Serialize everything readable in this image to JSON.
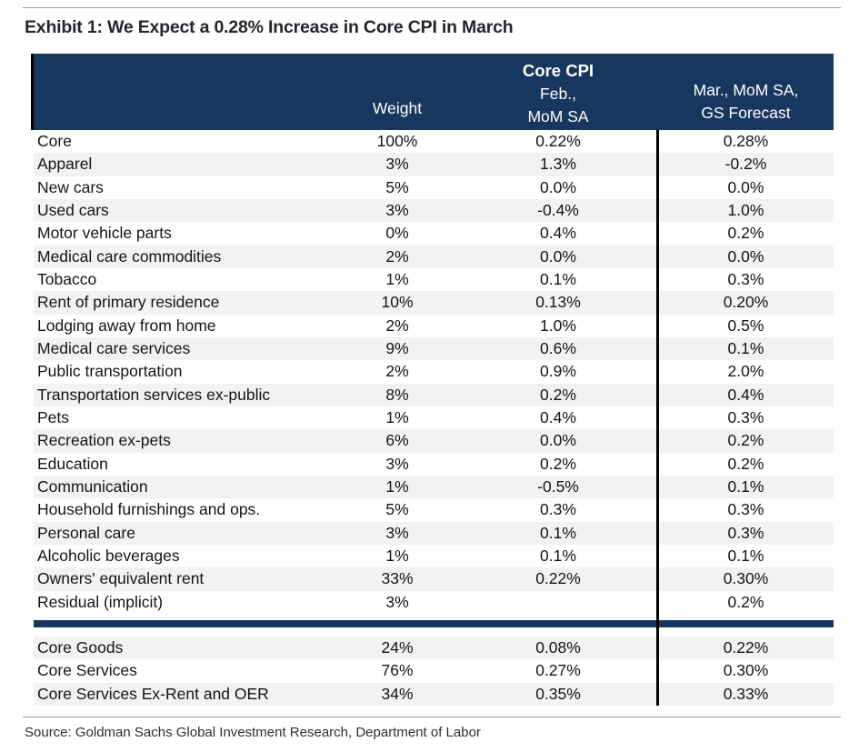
{
  "title": "Exhibit 1: We Expect a 0.28% Increase in Core CPI in March",
  "source": "Source: Goldman Sachs Global Investment Research, Department of Labor",
  "colors": {
    "header_bg": "#17375e",
    "divider_bar": "#17375e",
    "row_alt": "#f2f2f2",
    "column_divider": "#000000",
    "rule": "#9b9b9b"
  },
  "chart_data": {
    "type": "table",
    "title": "Exhibit 1: We Expect a 0.28% Increase in Core CPI in March",
    "group_header": "Core CPI",
    "columns": [
      "",
      "Weight",
      "Feb., MoM SA",
      "Mar., MoM SA, GS Forecast"
    ],
    "header_lines": {
      "weight": "Weight",
      "feb": [
        "Feb.,",
        "MoM SA"
      ],
      "mar": [
        "Mar., MoM SA,",
        "GS Forecast"
      ]
    },
    "rows": [
      [
        "Core",
        "100%",
        "0.22%",
        "0.28%"
      ],
      [
        "Apparel",
        "3%",
        "1.3%",
        "-0.2%"
      ],
      [
        "New cars",
        "5%",
        "0.0%",
        "0.0%"
      ],
      [
        "Used cars",
        "3%",
        "-0.4%",
        "1.0%"
      ],
      [
        "Motor vehicle parts",
        "0%",
        "0.4%",
        "0.2%"
      ],
      [
        "Medical care commodities",
        "2%",
        "0.0%",
        "0.0%"
      ],
      [
        "Tobacco",
        "1%",
        "0.1%",
        "0.3%"
      ],
      [
        "Rent of primary residence",
        "10%",
        "0.13%",
        "0.20%"
      ],
      [
        "Lodging away from home",
        "2%",
        "1.0%",
        "0.5%"
      ],
      [
        "Medical care services",
        "9%",
        "0.6%",
        "0.1%"
      ],
      [
        "Public transportation",
        "2%",
        "0.9%",
        "2.0%"
      ],
      [
        "Transportation services ex-public",
        "8%",
        "0.2%",
        "0.4%"
      ],
      [
        "Pets",
        "1%",
        "0.4%",
        "0.3%"
      ],
      [
        "Recreation ex-pets",
        "6%",
        "0.0%",
        "0.2%"
      ],
      [
        "Education",
        "3%",
        "0.2%",
        "0.2%"
      ],
      [
        "Communication",
        "1%",
        "-0.5%",
        "0.1%"
      ],
      [
        "Household furnishings and ops.",
        "5%",
        "0.3%",
        "0.3%"
      ],
      [
        "Personal care",
        "3%",
        "0.1%",
        "0.3%"
      ],
      [
        "Alcoholic beverages",
        "1%",
        "0.1%",
        "0.1%"
      ],
      [
        "Owners' equivalent rent",
        "33%",
        "0.22%",
        "0.30%"
      ],
      [
        "Residual (implicit)",
        "3%",
        "",
        "0.2%"
      ]
    ],
    "summary_rows": [
      [
        "Core Goods",
        "24%",
        "0.08%",
        "0.22%"
      ],
      [
        "Core Services",
        "76%",
        "0.27%",
        "0.30%"
      ],
      [
        "Core Services Ex-Rent and OER",
        "34%",
        "0.35%",
        "0.33%"
      ]
    ]
  }
}
